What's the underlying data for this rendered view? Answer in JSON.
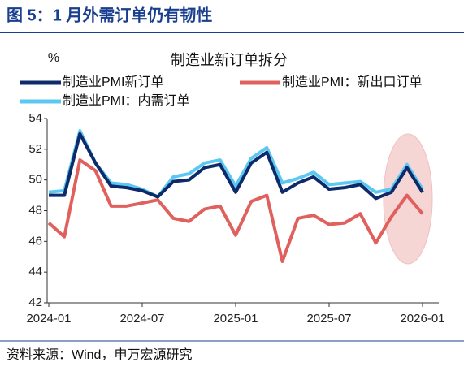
{
  "header": "图 5：1 月外需订单仍有韧性",
  "source": "资料来源：Wind，申万宏源研究",
  "chart_data": {
    "type": "line",
    "title": "制造业新订单拆分",
    "y_label": "%",
    "categories": [
      "2024-01",
      null,
      null,
      null,
      null,
      null,
      "2024-07",
      null,
      null,
      null,
      null,
      null,
      "2025-01",
      null,
      null,
      null,
      null,
      null,
      "2025-07",
      null,
      null,
      null,
      null,
      null,
      "2026-01"
    ],
    "series": [
      {
        "name": "制造业PMI新订单",
        "color": "#0d2a6b",
        "values": [
          49.0,
          49.0,
          53.0,
          51.1,
          49.6,
          49.5,
          49.3,
          48.9,
          49.9,
          50.0,
          50.8,
          51.0,
          49.2,
          51.1,
          51.8,
          49.2,
          49.8,
          50.2,
          49.4,
          49.5,
          49.7,
          48.8,
          49.2,
          50.8,
          49.2
        ]
      },
      {
        "name": "制造业PMI：新出口订单",
        "color": "#e0605e",
        "values": [
          47.2,
          46.3,
          51.3,
          50.6,
          48.3,
          48.3,
          48.5,
          48.7,
          47.5,
          47.3,
          48.1,
          48.3,
          46.4,
          48.6,
          49.0,
          44.7,
          47.5,
          47.7,
          47.1,
          47.2,
          47.8,
          45.9,
          47.6,
          49.0,
          47.8
        ]
      },
      {
        "name": "制造业PMI：内需订单",
        "color": "#5bc8f2",
        "values": [
          49.2,
          49.3,
          53.2,
          51.1,
          49.8,
          49.7,
          49.4,
          48.9,
          50.2,
          50.4,
          51.1,
          51.3,
          49.6,
          51.4,
          52.1,
          49.8,
          50.1,
          50.5,
          49.7,
          49.8,
          49.9,
          49.2,
          49.4,
          51.0,
          49.4
        ]
      }
    ],
    "ylim": [
      42,
      54
    ],
    "yticks": [
      42,
      44,
      46,
      48,
      50,
      52,
      54
    ],
    "grid": false
  }
}
